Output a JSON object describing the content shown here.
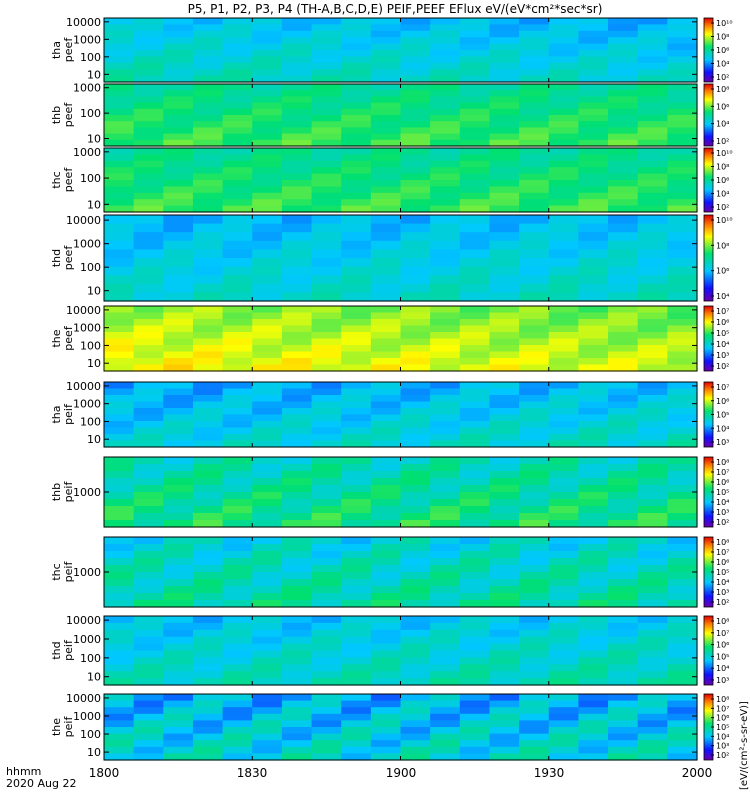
{
  "chart_data": {
    "type": "heatmap",
    "title": "P5, P1, P2, P3, P4 (TH-A,B,C,D,E) PEIF,PEEF EFlux eV/(eV*cm²*sec*sr)",
    "colorscale": "rainbow (purple-blue-cyan-green-yellow-red)",
    "x_axis": {
      "label_line1": "hhmm",
      "label_line2": "2020 Aug 22",
      "range": [
        1800,
        2000
      ],
      "ticks": [
        "1800",
        "1830",
        "1900",
        "1930",
        "2000"
      ]
    },
    "colorbar_label": "[eV/(cm²-s-sr-eV)]",
    "panels": [
      {
        "probe": "tha",
        "product": "peef",
        "label1": "tha",
        "label2": "peef",
        "y_ticks": [
          "10",
          "100",
          "1000",
          "10000"
        ],
        "cbar_ticks": [
          "10²",
          "10⁴",
          "10⁶",
          "10⁸",
          "10¹⁰"
        ],
        "base": 0.42,
        "contrast": 0.05,
        "slope": -0.05
      },
      {
        "probe": "thb",
        "product": "peef",
        "label1": "thb",
        "label2": "peef",
        "y_ticks": [
          "10",
          "100",
          "1000"
        ],
        "cbar_ticks": [
          "10²",
          "10⁴",
          "10⁶",
          "10⁸"
        ],
        "base": 0.55,
        "contrast": 0.05,
        "slope": 0.0
      },
      {
        "probe": "thc",
        "product": "peef",
        "label1": "thc",
        "label2": "peef",
        "y_ticks": [
          "10",
          "100",
          "1000"
        ],
        "cbar_ticks": [
          "10²",
          "10⁴",
          "10⁶",
          "10⁸",
          "10¹⁰"
        ],
        "base": 0.55,
        "contrast": 0.05,
        "slope": 0.0
      },
      {
        "probe": "thd",
        "product": "peef",
        "label1": "thd",
        "label2": "peef",
        "y_ticks": [
          "10",
          "100",
          "1000",
          "10000"
        ],
        "cbar_ticks": [
          "10⁴",
          "10⁶",
          "10⁸",
          "10¹⁰"
        ],
        "base": 0.38,
        "contrast": 0.05,
        "slope": 0.02
      },
      {
        "probe": "the",
        "product": "peef",
        "label1": "the",
        "label2": "peef",
        "y_ticks": [
          "10",
          "100",
          "1000",
          "10000"
        ],
        "cbar_ticks": [
          "10²",
          "10³",
          "10⁴",
          "10⁵",
          "10⁶",
          "10⁷"
        ],
        "base": 0.72,
        "contrast": 0.05,
        "slope": -0.05
      },
      {
        "probe": "tha",
        "product": "peif",
        "label1": "tha",
        "label2": "peif",
        "y_ticks": [
          "10",
          "100",
          "1000",
          "10000"
        ],
        "cbar_ticks": [
          "10³",
          "10⁴",
          "10⁵",
          "10⁶",
          "10⁷"
        ],
        "base": 0.36,
        "contrast": 0.06,
        "slope": 0.04
      },
      {
        "probe": "thb",
        "product": "peif",
        "label1": "thb",
        "label2": "peif",
        "y_ticks": [
          "1000"
        ],
        "cbar_ticks": [
          "10²",
          "10³",
          "10⁴",
          "10⁵",
          "10⁶",
          "10⁷",
          "10⁸"
        ],
        "base": 0.5,
        "contrast": 0.08,
        "slope": 0.0
      },
      {
        "probe": "thc",
        "product": "peif",
        "label1": "thc",
        "label2": "peif",
        "y_ticks": [
          "1000"
        ],
        "cbar_ticks": [
          "10²",
          "10³",
          "10⁴",
          "10⁵",
          "10⁶",
          "10⁷",
          "10⁸"
        ],
        "base": 0.45,
        "contrast": 0.08,
        "slope": 0.0
      },
      {
        "probe": "thd",
        "product": "peif",
        "label1": "thd",
        "label2": "peif",
        "y_ticks": [
          "10",
          "100",
          "1000",
          "10000"
        ],
        "cbar_ticks": [
          "10³",
          "10⁴",
          "10⁵",
          "10⁶",
          "10⁷",
          "10⁸"
        ],
        "base": 0.4,
        "contrast": 0.06,
        "slope": 0.03
      },
      {
        "probe": "the",
        "product": "peif",
        "label1": "the",
        "label2": "peif",
        "y_ticks": [
          "10",
          "100",
          "1000",
          "10000"
        ],
        "cbar_ticks": [
          "10²",
          "10³",
          "10⁴",
          "10⁵",
          "10⁶",
          "10⁷",
          "10⁸"
        ],
        "base": 0.38,
        "contrast": 0.1,
        "slope": 0.0
      }
    ]
  }
}
